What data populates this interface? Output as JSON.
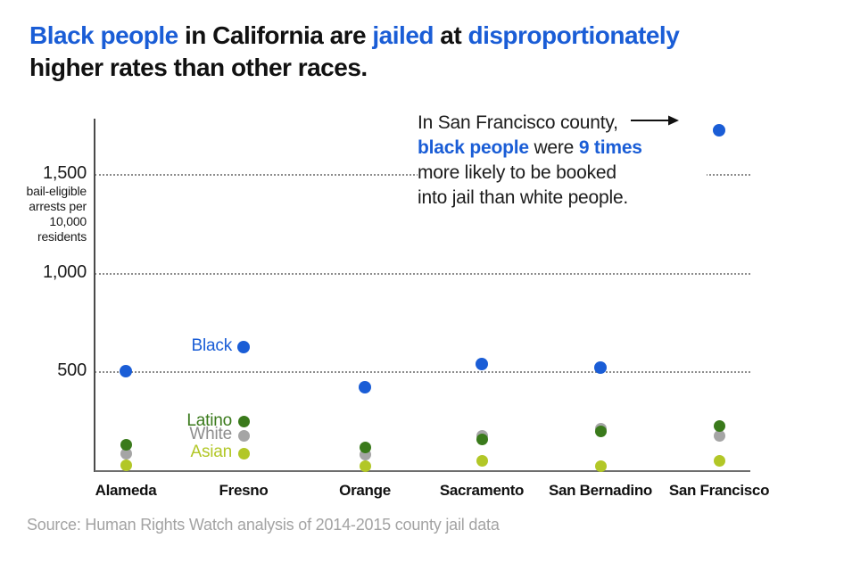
{
  "title": {
    "seg1": "Black people",
    "seg2": " in California are ",
    "seg3": "jailed",
    "seg4": " at ",
    "seg5": "disproportionately",
    "line2": "higher rates than other races."
  },
  "annotation": {
    "line1": "In San Francisco county,",
    "line2_b1": "black people",
    "line2_t1": " were ",
    "line2_b2": "9 times",
    "line3": "more likely to be booked",
    "line4": "into jail than white people."
  },
  "source": "Source: Human Rights Watch analysis of 2014-2015 county jail data",
  "colors": {
    "blue": "#1a5dd6",
    "dark_green": "#3a7a1b",
    "gray": "#a5a5a5",
    "gray_label": "#8e8e8e",
    "yellow_green": "#b2c727",
    "grid": "#8c8c8c",
    "source_gray": "#a3a3a3"
  },
  "chart_data": {
    "type": "scatter",
    "title": "Black people in California are jailed at disproportionately higher rates than other races.",
    "ylabel": "bail-eligible arrests per 10,000 residents",
    "unit_label_lines": [
      "bail-eligible",
      "arrests per",
      "10,000",
      "residents"
    ],
    "categories": [
      "Alameda",
      "Fresno",
      "Orange",
      "Sacramento",
      "San Bernadino",
      "San Francisco"
    ],
    "y_ticks": [
      {
        "label": "500",
        "value": 500
      },
      {
        "label": "1,000",
        "value": 1000
      },
      {
        "label": "1,500",
        "value": 1500
      }
    ],
    "ylim": [
      0,
      1785
    ],
    "grid": "horizontal dotted",
    "legend_position": "labels attached to Fresno points",
    "labeled_category_index": 1,
    "series": [
      {
        "name": "White",
        "color": "#a5a5a5",
        "label_color": "#8e8e8e",
        "values": [
          90,
          180,
          85,
          180,
          215,
          180
        ]
      },
      {
        "name": "Latino",
        "color": "#3a7a1b",
        "label_color": "#3a7a1b",
        "values": [
          135,
          250,
          120,
          160,
          200,
          230
        ]
      },
      {
        "name": "Asian",
        "color": "#b2c727",
        "label_color": "#b2c727",
        "values": [
          30,
          90,
          25,
          50,
          25,
          50
        ]
      },
      {
        "name": "Black",
        "color": "#1a5dd6",
        "label_color": "#1a5dd6",
        "values": [
          505,
          630,
          425,
          540,
          525,
          1725
        ]
      }
    ],
    "annotation_text": "In San Francisco county, black people were 9 times more likely to be booked into jail than white people."
  }
}
